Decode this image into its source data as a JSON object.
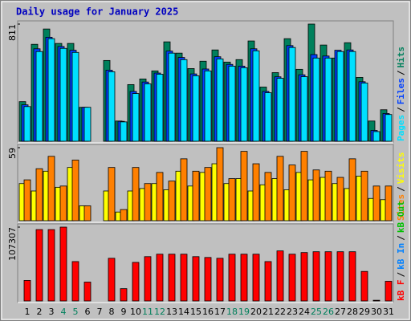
{
  "title": "Daily usage for January 2025",
  "chart_data": [
    {
      "type": "bar",
      "legend_separator": "/",
      "ylim": [
        0,
        811
      ],
      "yticks": [
        811
      ],
      "series": [
        {
          "name": "Hits",
          "color": "#00805c",
          "values": [
            274,
            671,
            777,
            677,
            677,
            235,
            0,
            559,
            140,
            392,
            431,
            487,
            688,
            610,
            503,
            554,
            632,
            548,
            565,
            694,
            375,
            475,
            710,
            498,
            811,
            666,
            576,
            682,
            442,
            140,
            218
          ]
        },
        {
          "name": "Files",
          "color": "#0040ff",
          "values": [
            252,
            640,
            720,
            656,
            630,
            235,
            0,
            492,
            138,
            345,
            410,
            472,
            624,
            580,
            466,
            500,
            585,
            532,
            520,
            640,
            345,
            446,
            662,
            460,
            600,
            590,
            630,
            632,
            412,
            75,
            192
          ]
        },
        {
          "name": "Pages",
          "color": "#00e0ff",
          "values": [
            240,
            621,
            710,
            643,
            615,
            235,
            0,
            481,
            134,
            330,
            397,
            464,
            610,
            565,
            453,
            487,
            570,
            520,
            509,
            626,
            336,
            436,
            649,
            447,
            576,
            576,
            621,
            621,
            403,
            67,
            185
          ]
        }
      ]
    },
    {
      "type": "bar",
      "legend_separator": "/",
      "ylim": [
        0,
        59
      ],
      "yticks": [
        59
      ],
      "series": [
        {
          "name": "Visits",
          "color": "#ffff00",
          "values": [
            30,
            24,
            40,
            27,
            43,
            12,
            0,
            24,
            7,
            24,
            26,
            30,
            25,
            40,
            28,
            39,
            46,
            30,
            34,
            24,
            29,
            34,
            25,
            39,
            33,
            35,
            30,
            26,
            36,
            18,
            17
          ]
        },
        {
          "name": "Sites",
          "color": "#ff8000",
          "values": [
            33,
            42,
            52,
            28,
            49,
            12,
            0,
            43,
            9,
            43,
            30,
            39,
            32,
            50,
            40,
            43,
            59,
            34,
            56,
            46,
            39,
            52,
            45,
            56,
            41,
            40,
            35,
            50,
            40,
            28,
            28
          ]
        }
      ]
    },
    {
      "type": "bar",
      "legend_separator": "/",
      "ylim": [
        0,
        107307
      ],
      "yticks": [
        107307
      ],
      "categories": [
        "1",
        "2",
        "3",
        "4",
        "5",
        "6",
        "7",
        "8",
        "9",
        "10",
        "11",
        "12",
        "13",
        "14",
        "15",
        "16",
        "17",
        "18",
        "19",
        "20",
        "21",
        "22",
        "23",
        "24",
        "25",
        "26",
        "27",
        "28",
        "29",
        "30",
        "31"
      ],
      "category_colors": [
        "#000000",
        "#000000",
        "#000000",
        "#00805c",
        "#00805c",
        "#000000",
        "#000000",
        "#000000",
        "#000000",
        "#000000",
        "#00805c",
        "#00805c",
        "#000000",
        "#000000",
        "#000000",
        "#000000",
        "#000000",
        "#00805c",
        "#00805c",
        "#000000",
        "#000000",
        "#000000",
        "#000000",
        "#000000",
        "#00805c",
        "#00805c",
        "#000000",
        "#000000",
        "#000000",
        "#000000",
        "#000000"
      ],
      "series": [
        {
          "name": "kB Out",
          "color": "#00c000",
          "values": [
            0,
            0,
            0,
            0,
            0,
            0,
            0,
            0,
            0,
            0,
            0,
            0,
            0,
            0,
            0,
            0,
            0,
            0,
            0,
            0,
            0,
            0,
            0,
            0,
            0,
            0,
            0,
            0,
            0,
            0,
            0
          ]
        },
        {
          "name": "kB In",
          "color": "#0080ff",
          "values": [
            0,
            0,
            0,
            0,
            0,
            0,
            0,
            0,
            0,
            0,
            0,
            0,
            0,
            0,
            0,
            0,
            0,
            0,
            0,
            0,
            0,
            0,
            0,
            0,
            0,
            0,
            0,
            0,
            0,
            0,
            0
          ]
        },
        {
          "name": "kB F",
          "color": "#ff0000",
          "values": [
            29808,
            103730,
            103730,
            107307,
            57231,
            27423,
            0,
            62000,
            17885,
            56038,
            64384,
            67961,
            67961,
            67961,
            64384,
            63192,
            62000,
            67961,
            67961,
            67961,
            57231,
            72731,
            67961,
            70346,
            71538,
            71538,
            71538,
            71538,
            42923,
            1000,
            28615
          ]
        }
      ]
    }
  ]
}
